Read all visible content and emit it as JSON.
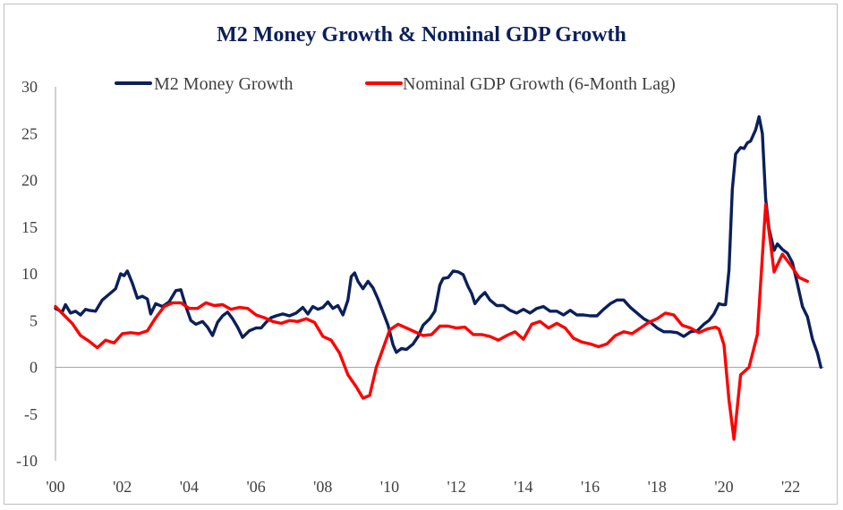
{
  "chart_data": {
    "type": "line",
    "title": "M2 Money Growth & Nominal GDP Growth",
    "xlabel": "",
    "ylabel": "",
    "xlim": [
      2000.0,
      2023.0
    ],
    "ylim": [
      -10,
      30
    ],
    "y_ticks": [
      30,
      25,
      20,
      15,
      10,
      5,
      0,
      -5,
      -10
    ],
    "x_tick_labels": [
      "'00",
      "'02",
      "'04",
      "'06",
      "'08",
      "'10",
      "'12",
      "'14",
      "'16",
      "'18",
      "'20",
      "'22"
    ],
    "x_tick_years": [
      2000,
      2002,
      2004,
      2006,
      2008,
      2010,
      2012,
      2014,
      2016,
      2018,
      2020,
      2022
    ],
    "legend_position": "top",
    "grid": false,
    "series": [
      {
        "name": "M2 Money Growth",
        "color": "#0b1f5b",
        "points": [
          [
            2000.0,
            6.3
          ],
          [
            2000.2,
            5.9
          ],
          [
            2000.3,
            6.7
          ],
          [
            2000.45,
            5.8
          ],
          [
            2000.6,
            6.0
          ],
          [
            2000.75,
            5.6
          ],
          [
            2000.9,
            6.2
          ],
          [
            2001.0,
            6.1
          ],
          [
            2001.2,
            6.0
          ],
          [
            2001.4,
            7.2
          ],
          [
            2001.6,
            7.8
          ],
          [
            2001.8,
            8.4
          ],
          [
            2001.95,
            10.0
          ],
          [
            2002.05,
            9.8
          ],
          [
            2002.15,
            10.3
          ],
          [
            2002.3,
            9.0
          ],
          [
            2002.45,
            7.4
          ],
          [
            2002.6,
            7.6
          ],
          [
            2002.75,
            7.3
          ],
          [
            2002.85,
            5.7
          ],
          [
            2003.0,
            6.8
          ],
          [
            2003.2,
            6.5
          ],
          [
            2003.4,
            7.0
          ],
          [
            2003.6,
            8.2
          ],
          [
            2003.75,
            8.3
          ],
          [
            2003.9,
            6.5
          ],
          [
            2004.05,
            5.0
          ],
          [
            2004.2,
            4.6
          ],
          [
            2004.4,
            4.9
          ],
          [
            2004.55,
            4.3
          ],
          [
            2004.7,
            3.4
          ],
          [
            2004.85,
            4.8
          ],
          [
            2005.0,
            5.5
          ],
          [
            2005.15,
            5.9
          ],
          [
            2005.3,
            5.2
          ],
          [
            2005.45,
            4.3
          ],
          [
            2005.6,
            3.2
          ],
          [
            2005.8,
            3.9
          ],
          [
            2006.0,
            4.2
          ],
          [
            2006.15,
            4.2
          ],
          [
            2006.3,
            4.8
          ],
          [
            2006.45,
            5.3
          ],
          [
            2006.6,
            5.5
          ],
          [
            2006.8,
            5.7
          ],
          [
            2007.0,
            5.5
          ],
          [
            2007.2,
            5.8
          ],
          [
            2007.4,
            6.4
          ],
          [
            2007.55,
            5.7
          ],
          [
            2007.7,
            6.5
          ],
          [
            2007.85,
            6.2
          ],
          [
            2008.0,
            6.4
          ],
          [
            2008.15,
            7.0
          ],
          [
            2008.3,
            6.3
          ],
          [
            2008.45,
            6.6
          ],
          [
            2008.6,
            5.6
          ],
          [
            2008.75,
            7.2
          ],
          [
            2008.85,
            9.7
          ],
          [
            2008.95,
            10.1
          ],
          [
            2009.05,
            9.2
          ],
          [
            2009.2,
            8.4
          ],
          [
            2009.35,
            9.2
          ],
          [
            2009.5,
            8.5
          ],
          [
            2009.65,
            7.3
          ],
          [
            2009.8,
            5.9
          ],
          [
            2009.95,
            4.5
          ],
          [
            2010.1,
            2.4
          ],
          [
            2010.2,
            1.6
          ],
          [
            2010.35,
            2.0
          ],
          [
            2010.5,
            1.9
          ],
          [
            2010.7,
            2.5
          ],
          [
            2010.85,
            3.3
          ],
          [
            2011.0,
            4.5
          ],
          [
            2011.2,
            5.2
          ],
          [
            2011.35,
            6.0
          ],
          [
            2011.5,
            8.8
          ],
          [
            2011.6,
            9.5
          ],
          [
            2011.75,
            9.6
          ],
          [
            2011.9,
            10.3
          ],
          [
            2012.05,
            10.2
          ],
          [
            2012.2,
            9.9
          ],
          [
            2012.35,
            8.6
          ],
          [
            2012.45,
            7.9
          ],
          [
            2012.55,
            6.8
          ],
          [
            2012.7,
            7.5
          ],
          [
            2012.85,
            8.0
          ],
          [
            2013.0,
            7.2
          ],
          [
            2013.2,
            6.6
          ],
          [
            2013.4,
            6.6
          ],
          [
            2013.6,
            6.1
          ],
          [
            2013.8,
            5.8
          ],
          [
            2014.0,
            6.2
          ],
          [
            2014.2,
            5.8
          ],
          [
            2014.4,
            6.3
          ],
          [
            2014.6,
            6.5
          ],
          [
            2014.8,
            6.0
          ],
          [
            2015.0,
            6.0
          ],
          [
            2015.2,
            5.6
          ],
          [
            2015.4,
            6.1
          ],
          [
            2015.6,
            5.6
          ],
          [
            2015.8,
            5.6
          ],
          [
            2016.0,
            5.5
          ],
          [
            2016.2,
            5.5
          ],
          [
            2016.4,
            6.2
          ],
          [
            2016.6,
            6.8
          ],
          [
            2016.8,
            7.2
          ],
          [
            2017.0,
            7.2
          ],
          [
            2017.2,
            6.4
          ],
          [
            2017.4,
            5.8
          ],
          [
            2017.6,
            5.2
          ],
          [
            2017.8,
            4.8
          ],
          [
            2018.0,
            4.2
          ],
          [
            2018.2,
            3.8
          ],
          [
            2018.4,
            3.8
          ],
          [
            2018.6,
            3.7
          ],
          [
            2018.8,
            3.3
          ],
          [
            2019.0,
            3.8
          ],
          [
            2019.2,
            3.9
          ],
          [
            2019.4,
            4.6
          ],
          [
            2019.55,
            5.0
          ],
          [
            2019.7,
            5.7
          ],
          [
            2019.85,
            6.8
          ],
          [
            2019.95,
            6.7
          ],
          [
            2020.05,
            6.7
          ],
          [
            2020.15,
            10.4
          ],
          [
            2020.25,
            19.0
          ],
          [
            2020.35,
            22.8
          ],
          [
            2020.5,
            23.5
          ],
          [
            2020.6,
            23.4
          ],
          [
            2020.7,
            24.0
          ],
          [
            2020.8,
            24.2
          ],
          [
            2020.95,
            25.4
          ],
          [
            2021.05,
            26.8
          ],
          [
            2021.15,
            25.0
          ],
          [
            2021.25,
            18.0
          ],
          [
            2021.35,
            14.8
          ],
          [
            2021.5,
            12.5
          ],
          [
            2021.6,
            13.2
          ],
          [
            2021.75,
            12.6
          ],
          [
            2021.9,
            12.2
          ],
          [
            2022.05,
            11.2
          ],
          [
            2022.2,
            8.9
          ],
          [
            2022.35,
            6.5
          ],
          [
            2022.5,
            5.4
          ],
          [
            2022.65,
            3.0
          ],
          [
            2022.8,
            1.5
          ],
          [
            2022.9,
            0.0
          ]
        ]
      },
      {
        "name": "Nominal GDP Growth (6-Month Lag)",
        "color": "#ff0000",
        "points": [
          [
            2000.0,
            6.5
          ],
          [
            2000.25,
            5.6
          ],
          [
            2000.5,
            4.7
          ],
          [
            2000.75,
            3.4
          ],
          [
            2001.0,
            2.8
          ],
          [
            2001.25,
            2.1
          ],
          [
            2001.5,
            2.9
          ],
          [
            2001.75,
            2.6
          ],
          [
            2002.0,
            3.6
          ],
          [
            2002.25,
            3.7
          ],
          [
            2002.5,
            3.6
          ],
          [
            2002.75,
            3.9
          ],
          [
            2003.0,
            5.3
          ],
          [
            2003.25,
            6.5
          ],
          [
            2003.5,
            6.9
          ],
          [
            2003.75,
            6.9
          ],
          [
            2004.0,
            6.3
          ],
          [
            2004.25,
            6.3
          ],
          [
            2004.5,
            6.9
          ],
          [
            2004.75,
            6.6
          ],
          [
            2005.0,
            6.7
          ],
          [
            2005.25,
            6.2
          ],
          [
            2005.5,
            6.4
          ],
          [
            2005.75,
            6.3
          ],
          [
            2006.0,
            5.6
          ],
          [
            2006.25,
            5.3
          ],
          [
            2006.5,
            4.9
          ],
          [
            2006.75,
            4.7
          ],
          [
            2007.0,
            5.0
          ],
          [
            2007.25,
            4.9
          ],
          [
            2007.5,
            5.2
          ],
          [
            2007.75,
            4.8
          ],
          [
            2008.0,
            3.3
          ],
          [
            2008.25,
            2.9
          ],
          [
            2008.5,
            1.5
          ],
          [
            2008.75,
            -0.8
          ],
          [
            2009.0,
            -2.1
          ],
          [
            2009.2,
            -3.3
          ],
          [
            2009.4,
            -3.0
          ],
          [
            2009.6,
            0.0
          ],
          [
            2009.8,
            2.0
          ],
          [
            2010.0,
            4.0
          ],
          [
            2010.25,
            4.6
          ],
          [
            2010.5,
            4.2
          ],
          [
            2010.75,
            3.8
          ],
          [
            2011.0,
            3.4
          ],
          [
            2011.25,
            3.5
          ],
          [
            2011.5,
            4.4
          ],
          [
            2011.75,
            4.4
          ],
          [
            2012.0,
            4.2
          ],
          [
            2012.25,
            4.3
          ],
          [
            2012.5,
            3.5
          ],
          [
            2012.75,
            3.5
          ],
          [
            2013.0,
            3.3
          ],
          [
            2013.25,
            2.9
          ],
          [
            2013.5,
            3.4
          ],
          [
            2013.75,
            3.8
          ],
          [
            2014.0,
            3.0
          ],
          [
            2014.25,
            4.6
          ],
          [
            2014.5,
            4.9
          ],
          [
            2014.75,
            4.2
          ],
          [
            2015.0,
            4.7
          ],
          [
            2015.25,
            4.2
          ],
          [
            2015.5,
            3.1
          ],
          [
            2015.75,
            2.7
          ],
          [
            2016.0,
            2.5
          ],
          [
            2016.25,
            2.2
          ],
          [
            2016.5,
            2.5
          ],
          [
            2016.75,
            3.4
          ],
          [
            2017.0,
            3.8
          ],
          [
            2017.25,
            3.6
          ],
          [
            2017.5,
            4.2
          ],
          [
            2017.75,
            4.8
          ],
          [
            2018.0,
            5.2
          ],
          [
            2018.25,
            5.8
          ],
          [
            2018.5,
            5.6
          ],
          [
            2018.75,
            4.5
          ],
          [
            2019.0,
            4.2
          ],
          [
            2019.25,
            3.7
          ],
          [
            2019.5,
            4.1
          ],
          [
            2019.75,
            4.3
          ],
          [
            2019.85,
            4.1
          ],
          [
            2020.0,
            2.4
          ],
          [
            2020.15,
            -3.5
          ],
          [
            2020.3,
            -7.7
          ],
          [
            2020.5,
            -0.8
          ],
          [
            2020.75,
            0.0
          ],
          [
            2021.0,
            3.5
          ],
          [
            2021.25,
            17.4
          ],
          [
            2021.5,
            10.2
          ],
          [
            2021.75,
            12.1
          ],
          [
            2022.0,
            10.9
          ],
          [
            2022.25,
            9.6
          ],
          [
            2022.5,
            9.2
          ]
        ]
      }
    ]
  }
}
